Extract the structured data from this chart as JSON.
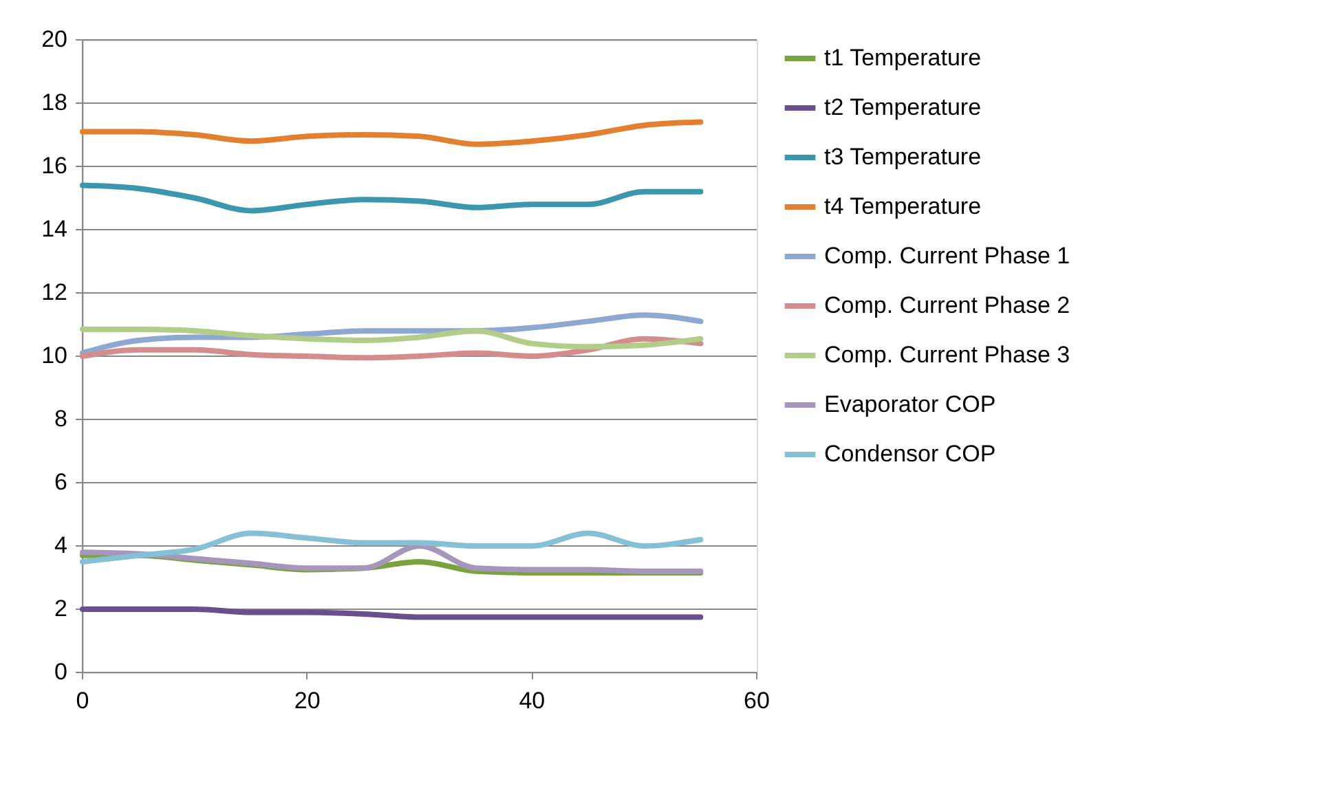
{
  "chart_data": {
    "type": "line",
    "x": [
      0,
      5,
      10,
      15,
      20,
      25,
      30,
      35,
      40,
      45,
      50,
      55
    ],
    "series": [
      {
        "name": "t1 Temperature",
        "color": "#7aa33f",
        "values": [
          3.7,
          3.7,
          3.55,
          3.4,
          3.25,
          3.3,
          3.5,
          3.2,
          3.15,
          3.15,
          3.15,
          3.15
        ]
      },
      {
        "name": "t2 Temperature",
        "color": "#6a4f8c",
        "values": [
          2.0,
          2.0,
          2.0,
          1.9,
          1.9,
          1.85,
          1.75,
          1.75,
          1.75,
          1.75,
          1.75,
          1.75
        ]
      },
      {
        "name": "t3 Temperature",
        "color": "#3a97ae",
        "values": [
          15.4,
          15.3,
          15.0,
          14.6,
          14.8,
          14.95,
          14.9,
          14.7,
          14.8,
          14.8,
          15.2,
          15.2
        ]
      },
      {
        "name": "t4 Temperature",
        "color": "#e2802f",
        "values": [
          17.1,
          17.1,
          17.0,
          16.8,
          16.95,
          17.0,
          16.95,
          16.7,
          16.8,
          17.0,
          17.3,
          17.4
        ]
      },
      {
        "name": "Comp. Current Phase 1",
        "color": "#8ea8d1",
        "values": [
          10.1,
          10.5,
          10.6,
          10.6,
          10.7,
          10.8,
          10.8,
          10.8,
          10.9,
          11.1,
          11.3,
          11.1
        ]
      },
      {
        "name": "Comp. Current Phase 2",
        "color": "#d58c8c",
        "values": [
          10.0,
          10.2,
          10.2,
          10.05,
          10.0,
          9.95,
          10.0,
          10.1,
          10.0,
          10.2,
          10.55,
          10.4
        ]
      },
      {
        "name": "Comp. Current Phase 3",
        "color": "#b2cc8a",
        "values": [
          10.85,
          10.85,
          10.8,
          10.65,
          10.55,
          10.5,
          10.6,
          10.8,
          10.4,
          10.3,
          10.35,
          10.55
        ]
      },
      {
        "name": "Evaporator COP",
        "color": "#a796bb",
        "values": [
          3.8,
          3.75,
          3.6,
          3.45,
          3.3,
          3.3,
          4.0,
          3.3,
          3.25,
          3.25,
          3.2,
          3.2
        ]
      },
      {
        "name": "Condensor COP",
        "color": "#86c0d4",
        "values": [
          3.5,
          3.7,
          3.9,
          4.4,
          4.25,
          4.1,
          4.1,
          4.0,
          4.0,
          4.4,
          4.0,
          4.2
        ]
      }
    ],
    "xlim": [
      0,
      60
    ],
    "xticks": [
      0,
      20,
      40,
      60
    ],
    "ylim": [
      0,
      20
    ],
    "yticks": [
      0,
      2,
      4,
      6,
      8,
      10,
      12,
      14,
      16,
      18,
      20
    ],
    "grid": "y",
    "legend": "right",
    "line_style": "solid",
    "marker": "none"
  }
}
